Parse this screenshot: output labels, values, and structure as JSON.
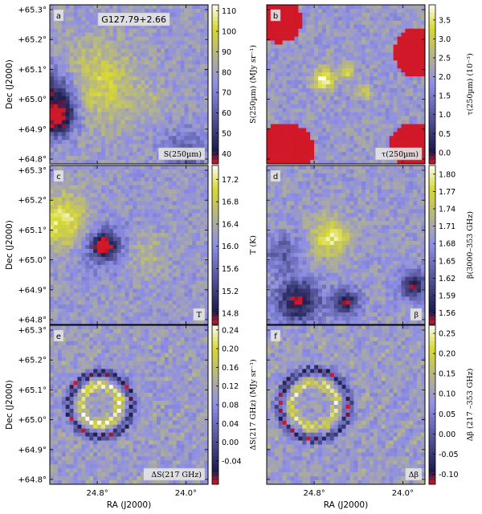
{
  "figure": {
    "object_label": "G127.79+2.66",
    "xlabel": "RA (J2000)",
    "ylabel": "Dec (J2000)",
    "dec_ticks": [
      "+64.8°",
      "+64.9°",
      "+65.0°",
      "+65.1°",
      "+65.2°",
      "+65.3°"
    ],
    "ra_ticks": [
      "24.8°",
      "24.0°"
    ]
  },
  "colors": {
    "low": "#d01828",
    "dark": "#1a1a4a",
    "mid": "#8e8ee6",
    "high": "#d8d830",
    "top": "#fcfcf4"
  },
  "chart_data": [
    {
      "type": "heatmap",
      "panel": "a",
      "map_label": "S(250µm)",
      "colorbar_label": "S(250µm) (MJy sr⁻¹)",
      "colorbar_ticks": [
        "40",
        "50",
        "60",
        "70",
        "80",
        "90",
        "100",
        "110"
      ],
      "clim": [
        35,
        113
      ],
      "features": [
        {
          "kind": "blob",
          "cx": 0.28,
          "cy": 0.5,
          "r": 0.3,
          "value": 100
        },
        {
          "kind": "blob",
          "cx": 0.0,
          "cy": 0.58,
          "r": 0.22,
          "value": 35
        },
        {
          "kind": "blob",
          "cx": 0.06,
          "cy": 0.72,
          "r": 0.12,
          "value": 45
        },
        {
          "kind": "blob",
          "cx": 0.64,
          "cy": 0.6,
          "r": 0.12,
          "value": 85
        },
        {
          "kind": "blob",
          "cx": 0.85,
          "cy": 0.92,
          "r": 0.15,
          "value": 58
        }
      ]
    },
    {
      "type": "heatmap",
      "panel": "b",
      "map_label": "τ(250µm)",
      "colorbar_label": "τ(250µm) (10⁻³)",
      "colorbar_ticks": [
        "0.0",
        "0.5",
        "1.0",
        "1.5",
        "2.0",
        "2.5",
        "3.0",
        "3.5"
      ],
      "clim": [
        -0.3,
        3.9
      ],
      "features": [
        {
          "kind": "blob",
          "cx": 0.36,
          "cy": 0.47,
          "r": 0.08,
          "value": 3.8
        },
        {
          "kind": "blob",
          "cx": 0.5,
          "cy": 0.42,
          "r": 0.06,
          "value": 3.3
        },
        {
          "kind": "blob",
          "cx": 0.62,
          "cy": 0.55,
          "r": 0.05,
          "value": 3.0
        },
        {
          "kind": "edge",
          "cx": 0.08,
          "cy": 0.1,
          "r": 0.14,
          "value": -0.3
        },
        {
          "kind": "edge",
          "cx": 0.96,
          "cy": 0.3,
          "r": 0.16,
          "value": -0.3
        },
        {
          "kind": "edge",
          "cx": 0.12,
          "cy": 0.92,
          "r": 0.18,
          "value": -0.3
        },
        {
          "kind": "edge",
          "cx": 0.92,
          "cy": 0.88,
          "r": 0.14,
          "value": -0.3
        }
      ]
    },
    {
      "type": "heatmap",
      "panel": "c",
      "map_label": "T",
      "colorbar_label": "T (K)",
      "colorbar_ticks": [
        "14.8",
        "15.2",
        "15.6",
        "16.0",
        "16.4",
        "16.8",
        "17.2"
      ],
      "clim": [
        14.6,
        17.45
      ],
      "features": [
        {
          "kind": "blob",
          "cx": 0.34,
          "cy": 0.5,
          "r": 0.07,
          "value": 14.6
        },
        {
          "kind": "blob",
          "cx": 0.34,
          "cy": 0.5,
          "r": 0.18,
          "value": 15.4
        },
        {
          "kind": "blob",
          "cx": 0.6,
          "cy": 0.56,
          "r": 0.14,
          "value": 16.6
        },
        {
          "kind": "blob",
          "cx": 0.08,
          "cy": 0.35,
          "r": 0.2,
          "value": 17.2
        }
      ]
    },
    {
      "type": "heatmap",
      "panel": "d",
      "map_label": "β",
      "colorbar_label": "β(3000–353 GHz)",
      "colorbar_ticks": [
        "1.56",
        "1.59",
        "1.62",
        "1.65",
        "1.68",
        "1.71",
        "1.74",
        "1.77",
        "1.80"
      ],
      "clim": [
        1.54,
        1.815
      ],
      "features": [
        {
          "kind": "blob",
          "cx": 0.4,
          "cy": 0.45,
          "r": 0.14,
          "value": 1.79
        },
        {
          "kind": "blob",
          "cx": 0.2,
          "cy": 0.85,
          "r": 0.16,
          "value": 1.55
        },
        {
          "kind": "blob",
          "cx": 0.5,
          "cy": 0.86,
          "r": 0.1,
          "value": 1.56
        },
        {
          "kind": "blob",
          "cx": 0.93,
          "cy": 0.75,
          "r": 0.1,
          "value": 1.56
        },
        {
          "kind": "blob",
          "cx": 0.1,
          "cy": 0.55,
          "r": 0.14,
          "value": 1.63
        }
      ]
    },
    {
      "type": "heatmap",
      "panel": "e",
      "map_label": "ΔS(217 GHz)",
      "colorbar_label": "ΔS(217 GHz) (MJy sr⁻¹)",
      "colorbar_ticks": [
        "-0.04",
        "0.00",
        "0.04",
        "0.08",
        "0.12",
        "0.16",
        "0.20",
        "0.24"
      ],
      "clim": [
        -0.09,
        0.25
      ],
      "features": [
        {
          "kind": "ring",
          "cx": 0.32,
          "cy": 0.5,
          "r": 0.12,
          "value": 0.25
        },
        {
          "kind": "ring",
          "cx": 0.32,
          "cy": 0.5,
          "r": 0.2,
          "value": -0.08
        }
      ]
    },
    {
      "type": "heatmap",
      "panel": "f",
      "map_label": "Δβ",
      "colorbar_label": "Δβ (217 –353 GHz)",
      "colorbar_ticks": [
        "-0.10",
        "-0.05",
        "0.00",
        "0.05",
        "0.10",
        "0.15",
        "0.20",
        "0.25"
      ],
      "clim": [
        -0.125,
        0.27
      ],
      "features": [
        {
          "kind": "ring",
          "cx": 0.3,
          "cy": 0.5,
          "r": 0.14,
          "value": 0.22
        },
        {
          "kind": "ring",
          "cx": 0.3,
          "cy": 0.5,
          "r": 0.22,
          "value": -0.11
        }
      ]
    }
  ]
}
